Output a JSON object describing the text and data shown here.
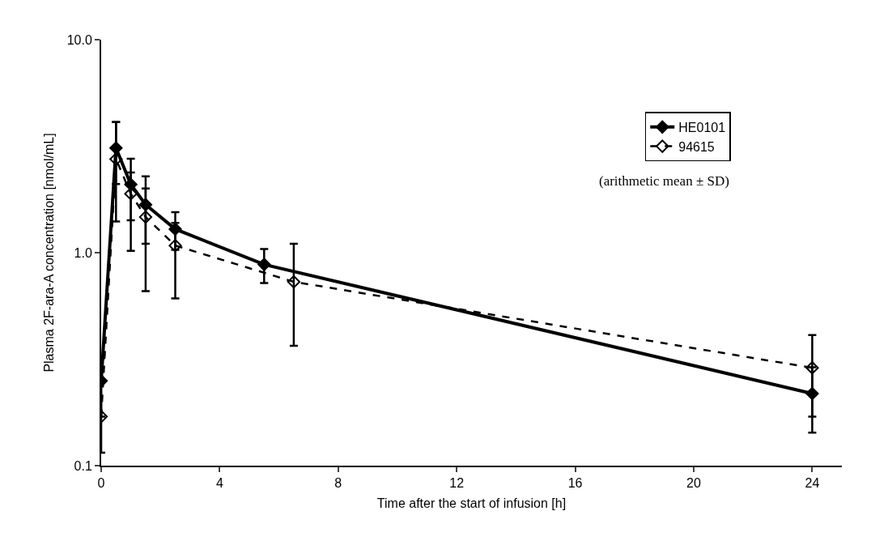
{
  "chart_data": {
    "type": "line",
    "xlabel": "Time after the start of infusion [h]",
    "ylabel": "Plasma 2F-ara-A concentration [nmol/mL]",
    "annotations": [
      "(arithmetic mean ± SD)"
    ],
    "log": "y",
    "xlim": [
      0,
      25
    ],
    "xticks": [
      0,
      4,
      8,
      12,
      16,
      20,
      24
    ],
    "ylim": [
      0.1,
      10
    ],
    "yticks": [
      {
        "value": 0.1,
        "label": "0.1"
      },
      {
        "value": 1,
        "label": "1.0"
      },
      {
        "value": 10,
        "label": "10.0"
      }
    ],
    "grid": false,
    "legend": "top right",
    "series": [
      {
        "name": "HE0101",
        "color": "#000000",
        "marker": "diamond",
        "line_style": "solid",
        "x": [
          0,
          0.5,
          1,
          1.5,
          2.5,
          5.5,
          24
        ],
        "values": [
          0.25,
          3.1,
          2.09,
          1.68,
          1.29,
          0.88,
          0.218
        ],
        "errors": [
          [
            0.17,
            0.32
          ],
          [
            2.1,
            4.1
          ],
          [
            1.42,
            2.76
          ],
          [
            1.1,
            2.28
          ],
          [
            1.03,
            1.55
          ],
          [
            0.72,
            1.04
          ],
          [
            0.143,
            0.29
          ]
        ]
      },
      {
        "name": "94615",
        "color": "#000000",
        "marker": "diamond-open",
        "line_style": "dashed",
        "x": [
          0,
          0.5,
          1,
          1.5,
          2.5,
          6.5,
          24
        ],
        "values": [
          0.17,
          2.75,
          1.89,
          1.47,
          1.08,
          0.73,
          0.288
        ],
        "errors": [
          [
            0.115,
            0.25
          ],
          [
            1.4,
            4.1
          ],
          [
            1.02,
            2.38
          ],
          [
            0.66,
            2.0
          ],
          [
            0.61,
            1.38
          ],
          [
            0.365,
            1.1
          ],
          [
            0.17,
            0.41
          ]
        ]
      }
    ]
  }
}
